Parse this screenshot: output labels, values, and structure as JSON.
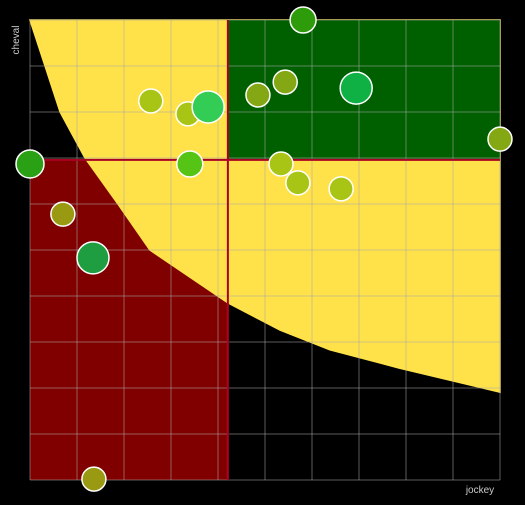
{
  "chart_data": {
    "type": "scatter",
    "x_label": "jockey",
    "y_label": "cheval",
    "xlim": [
      0,
      10
    ],
    "ylim": [
      0,
      10
    ],
    "xticks": [
      0,
      1,
      2,
      3,
      4,
      5,
      6,
      7,
      8,
      9,
      10
    ],
    "yticks": [
      0,
      1,
      2,
      3,
      4,
      5,
      6,
      7,
      8,
      9,
      10
    ],
    "grid": true,
    "quadrant": {
      "x": 4.21,
      "y": 6.96,
      "color": "#aa0022",
      "low_color": "#800000",
      "high_color": "#006000"
    },
    "curve": {
      "x": [
        0,
        0.32,
        0.64,
        1.17,
        1.87,
        2.55,
        4.21,
        5.32,
        6.38,
        7.87,
        10
      ],
      "y": [
        10,
        9.0,
        8.0,
        7.0,
        6.0,
        5.0,
        3.85,
        3.26,
        2.83,
        2.43,
        1.91
      ],
      "color": "#ffe24a"
    },
    "x": [
      5.81,
      2.57,
      3.36,
      3.79,
      4.85,
      5.43,
      6.94,
      10,
      0,
      3.4,
      5.34,
      5.7,
      6.62,
      0.7,
      1.34,
      1.36
    ],
    "y": [
      10.0,
      8.24,
      7.96,
      8.11,
      8.37,
      8.65,
      8.52,
      7.41,
      6.87,
      6.87,
      6.87,
      6.46,
      6.33,
      5.78,
      4.83,
      0.02
    ],
    "sizes": [
      13,
      12,
      12,
      16,
      12,
      12,
      16,
      12,
      14,
      13,
      12,
      12,
      12,
      12,
      16,
      12
    ],
    "colors": [
      "#2e9c0a",
      "#a8c414",
      "#a8c414",
      "#33cc55",
      "#84a814",
      "#84a814",
      "#0fb044",
      "#84a814",
      "#2aa014",
      "#55c414",
      "#a8c414",
      "#a8c414",
      "#a8c414",
      "#9a9a12",
      "#1e9e40",
      "#9a9a12"
    ]
  }
}
